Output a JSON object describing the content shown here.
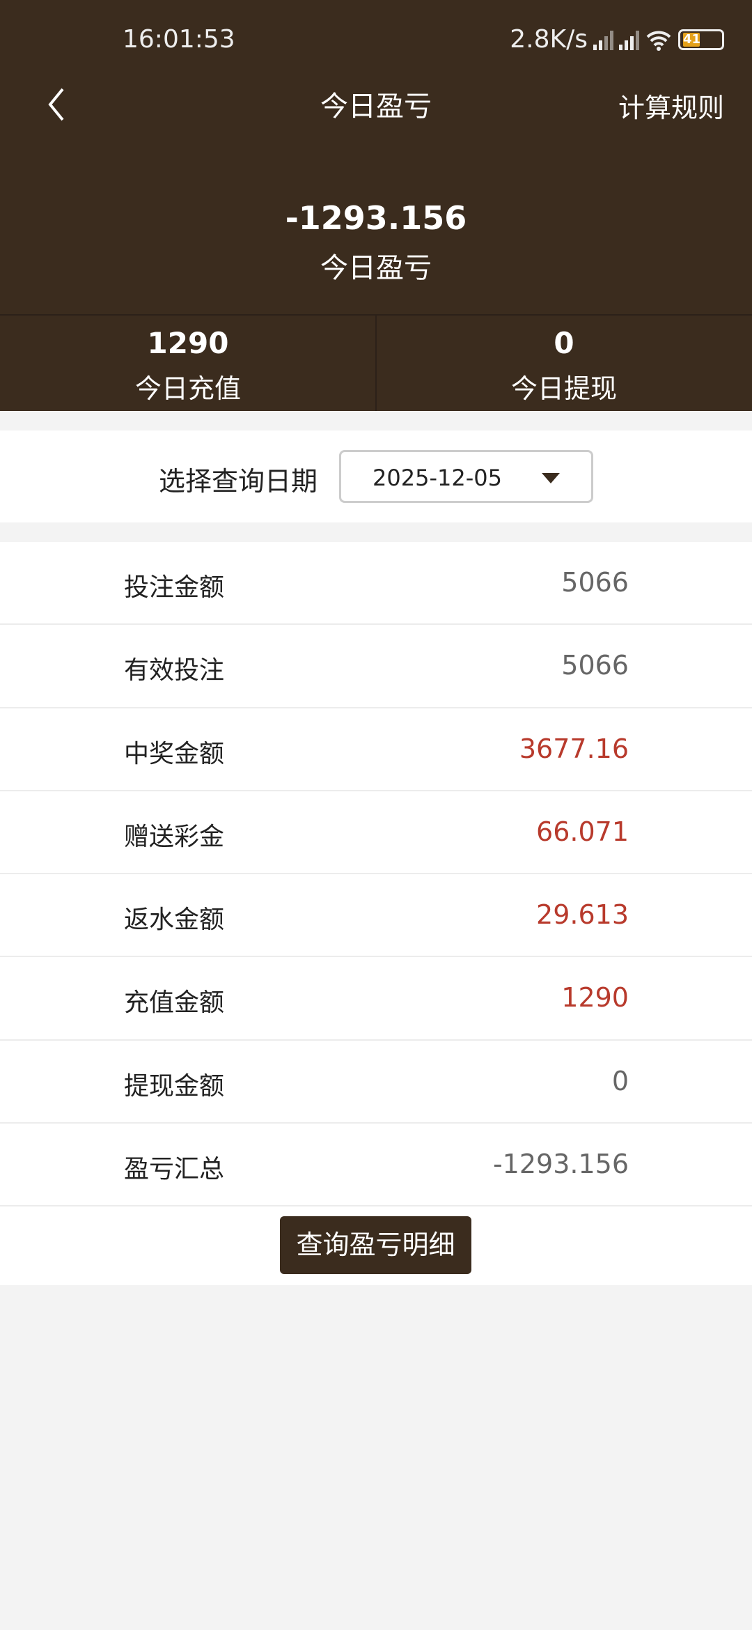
{
  "status_bar": {
    "time": "16:01:53",
    "net_speed": "2.8K/s",
    "battery": "41",
    "colors": {
      "battery": "#e4a11b"
    }
  },
  "nav": {
    "title": "今日盈亏",
    "rules": "计算规则",
    "back_icon": "chevron-left-icon"
  },
  "summary": {
    "value": "-1293.156",
    "label": "今日盈亏"
  },
  "stats": [
    {
      "value": "1290",
      "label": "今日充值"
    },
    {
      "value": "0",
      "label": "今日提现"
    }
  ],
  "date": {
    "label": "选择查询日期",
    "value": "2025-12-05"
  },
  "rows": [
    {
      "label": "投注金额",
      "value": "5066",
      "highlight": false
    },
    {
      "label": "有效投注",
      "value": "5066",
      "highlight": false
    },
    {
      "label": "中奖金额",
      "value": "3677.16",
      "highlight": true
    },
    {
      "label": "赠送彩金",
      "value": "66.071",
      "highlight": true
    },
    {
      "label": "返水金额",
      "value": "29.613",
      "highlight": true
    },
    {
      "label": "充值金额",
      "value": "1290",
      "highlight": true
    },
    {
      "label": "提现金额",
      "value": "0",
      "highlight": false
    },
    {
      "label": "盈亏汇总",
      "value": "-1293.156",
      "highlight": false
    }
  ],
  "button": "查询盈亏明细",
  "colors": {
    "header": "#3b2c1e",
    "highlight": "#b83a2c"
  }
}
